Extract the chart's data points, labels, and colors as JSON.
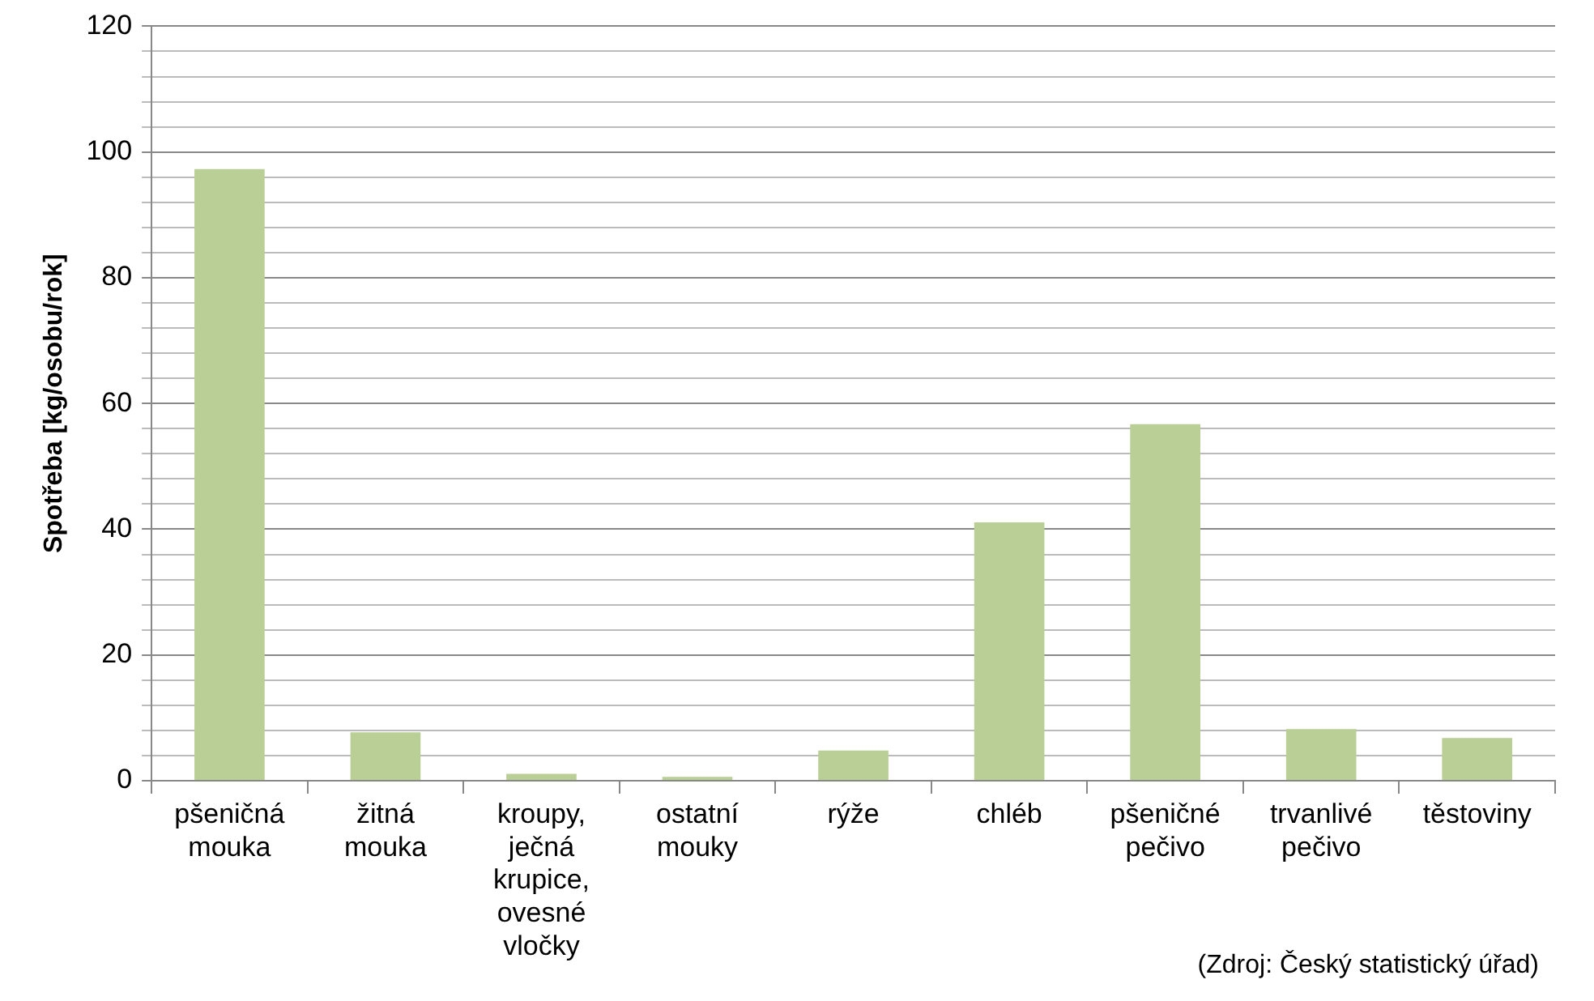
{
  "chart_data": {
    "type": "bar",
    "ylabel": "Spotřeba [kg/osobu/rok]",
    "categories": [
      "pšeničná mouka",
      "žitná mouka",
      "kroupy, ječná krupice, ovesné vločky",
      "ostatní mouky",
      "rýže",
      "chléb",
      "pšeničné pečivo",
      "trvanlivé pečivo",
      "těstoviny"
    ],
    "values": [
      97.3,
      7.7,
      1.1,
      0.6,
      4.8,
      41.1,
      56.7,
      8.2,
      6.8
    ],
    "color": "#b9cf96",
    "ylim": [
      0,
      120
    ],
    "yticks": [
      0,
      {
        "value": 4,
        "label": null
      },
      {
        "value": 8,
        "label": null
      },
      {
        "value": 12,
        "label": null
      },
      {
        "value": 16,
        "label": null
      },
      20,
      {
        "value": 24,
        "label": null
      },
      {
        "value": 28,
        "label": null
      },
      {
        "value": 32,
        "label": null
      },
      {
        "value": 36,
        "label": null
      },
      40,
      {
        "value": 44,
        "label": null
      },
      {
        "value": 48,
        "label": null
      },
      {
        "value": 52,
        "label": null
      },
      {
        "value": 56,
        "label": null
      },
      60,
      {
        "value": 64,
        "label": null
      },
      {
        "value": 68,
        "label": null
      },
      {
        "value": 72,
        "label": null
      },
      {
        "value": 76,
        "label": null
      },
      80,
      {
        "value": 84,
        "label": null
      },
      {
        "value": 88,
        "label": null
      },
      {
        "value": 92,
        "label": null
      },
      {
        "value": 96,
        "label": null
      },
      100,
      {
        "value": 104,
        "label": null
      },
      {
        "value": 108,
        "label": null
      },
      {
        "value": 112,
        "label": null
      },
      {
        "value": 116,
        "label": null
      },
      120
    ],
    "grid": true,
    "legend": false,
    "annotations": [
      "(Zdroj: Český statistický úřad)"
    ]
  }
}
